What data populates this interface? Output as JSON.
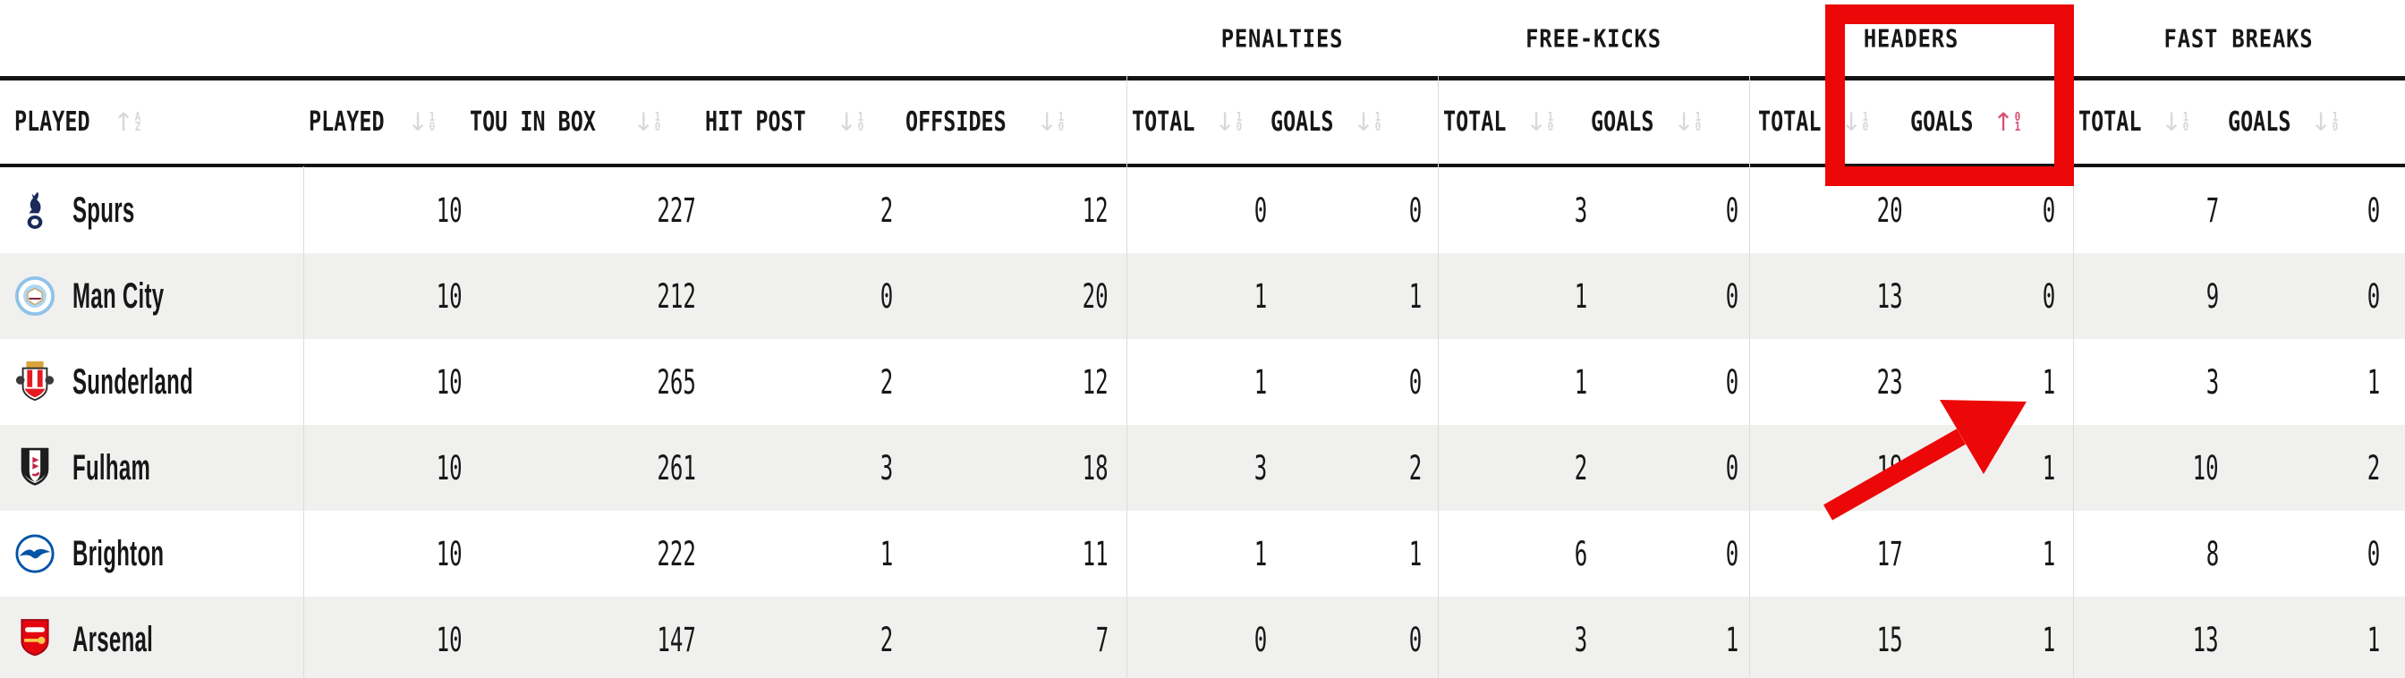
{
  "table": {
    "group_labels": [
      "PENALTIES",
      "FREE-KICKS",
      "HEADERS",
      "FAST BREAKS"
    ],
    "columns": [
      {
        "label": "PLAYED",
        "sort_arrow": "↑",
        "sort_top": "A",
        "sort_bottom": "Z",
        "active": false
      },
      {
        "label": "PLAYED",
        "sort_arrow": "↓",
        "sort_top": "1",
        "sort_bottom": "0",
        "active": false
      },
      {
        "label": "TOU IN BOX",
        "sort_arrow": "↓",
        "sort_top": "1",
        "sort_bottom": "0",
        "active": false
      },
      {
        "label": "HIT POST",
        "sort_arrow": "↓",
        "sort_top": "1",
        "sort_bottom": "0",
        "active": false
      },
      {
        "label": "OFFSIDES",
        "sort_arrow": "↓",
        "sort_top": "1",
        "sort_bottom": "0",
        "active": false
      },
      {
        "label": "TOTAL",
        "sort_arrow": "↓",
        "sort_top": "1",
        "sort_bottom": "0",
        "active": false
      },
      {
        "label": "GOALS",
        "sort_arrow": "↓",
        "sort_top": "1",
        "sort_bottom": "0",
        "active": false
      },
      {
        "label": "TOTAL",
        "sort_arrow": "↓",
        "sort_top": "1",
        "sort_bottom": "0",
        "active": false
      },
      {
        "label": "GOALS",
        "sort_arrow": "↓",
        "sort_top": "1",
        "sort_bottom": "0",
        "active": false
      },
      {
        "label": "TOTAL",
        "sort_arrow": "↓",
        "sort_top": "1",
        "sort_bottom": "0",
        "active": false
      },
      {
        "label": "GOALS",
        "sort_arrow": "↑",
        "sort_top": "0",
        "sort_bottom": "1",
        "active": true
      },
      {
        "label": "TOTAL",
        "sort_arrow": "↓",
        "sort_top": "1",
        "sort_bottom": "0",
        "active": false
      },
      {
        "label": "GOALS",
        "sort_arrow": "↓",
        "sort_top": "1",
        "sort_bottom": "0",
        "active": false
      }
    ],
    "teams": [
      {
        "name": "Spurs",
        "logo": "spurs",
        "values": [
          "10",
          "227",
          "2",
          "12",
          "0",
          "0",
          "3",
          "0",
          "20",
          "0",
          "7",
          "0"
        ]
      },
      {
        "name": "Man City",
        "logo": "man-city",
        "values": [
          "10",
          "212",
          "0",
          "20",
          "1",
          "1",
          "1",
          "0",
          "13",
          "0",
          "9",
          "0"
        ]
      },
      {
        "name": "Sunderland",
        "logo": "sunderland",
        "values": [
          "10",
          "265",
          "2",
          "12",
          "1",
          "0",
          "1",
          "0",
          "23",
          "1",
          "3",
          "1"
        ]
      },
      {
        "name": "Fulham",
        "logo": "fulham",
        "values": [
          "10",
          "261",
          "3",
          "18",
          "3",
          "2",
          "2",
          "0",
          "19",
          "1",
          "10",
          "2"
        ]
      },
      {
        "name": "Brighton",
        "logo": "brighton",
        "values": [
          "10",
          "222",
          "1",
          "11",
          "1",
          "1",
          "6",
          "0",
          "17",
          "1",
          "8",
          "0"
        ]
      },
      {
        "name": "Arsenal",
        "logo": "arsenal",
        "values": [
          "10",
          "147",
          "2",
          "7",
          "0",
          "0",
          "3",
          "1",
          "15",
          "1",
          "13",
          "1"
        ]
      }
    ]
  },
  "annotations": {
    "highlight_color": "#ec0808",
    "active_sort_color": "#d94f72",
    "row_alt_color": "#f0f0ef",
    "highlighted_column": "HEADERS GOALS"
  }
}
